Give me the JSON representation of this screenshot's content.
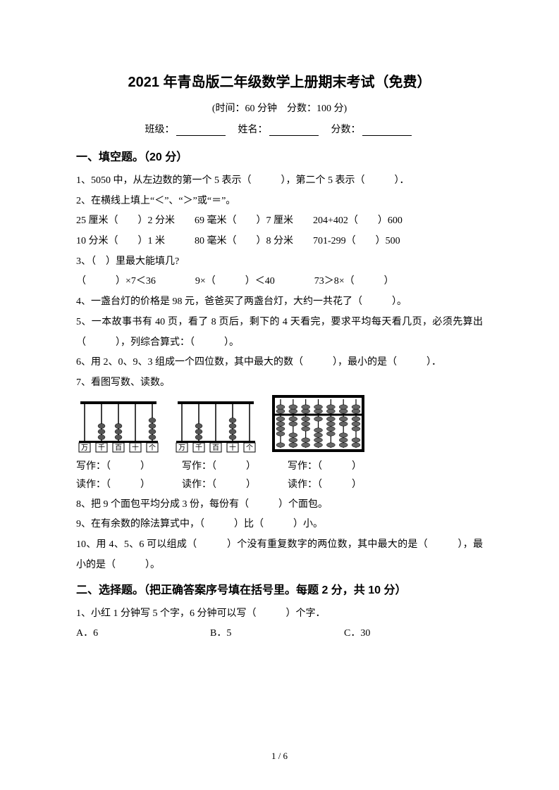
{
  "title": "2021 年青岛版二年级数学上册期末考试（免费）",
  "subtitle": "(时间：60 分钟　分数：100 分)",
  "info": {
    "class_label": "班级：",
    "name_label": "姓名：",
    "score_label": "分数："
  },
  "section1": {
    "head": "一、填空题。（20 分）",
    "q1": "1、5050 中，从左边数的第一个 5 表示（　　　），第二个 5 表示（　　　）．",
    "q2_intro": "2、在横线上填上“＜”、“＞”或“＝”。",
    "q2_l1": "25 厘米（　　）2 分米　　69 毫米（　　）7 厘米　　204+402（　　）600",
    "q2_l2": "10 分米（　　）1 米　　　80 毫米（　　）8 分米　　701-299（　　）500",
    "q3_intro": "3、（　）里最大能填几?",
    "q3_l1": "（　　　）×7＜36　　　　9×（　　　）＜40　　　　73＞8×（　　　）",
    "q4": "4、一盏台灯的价格是 98 元，爸爸买了两盏台灯，大约一共花了（　　　）。",
    "q5": "5、一本故事书有 40 页，看了 8 页后，剩下的 4 天看完，要求平均每天看几页，必须先算出（　　　），列综合算式：（　　　）。",
    "q6": "6、用 2、0、9、3 组成一个四位数，其中最大的数（　　　），最小的是（　　　）．",
    "q7_intro": "7、看图写数、读数。",
    "write_label": "写作：（　　　）",
    "read_label": "读作：（　　　）",
    "q8": "8、把 9 个面包平均分成 3 份，每份有（　　　）个面包。",
    "q9": "9、在有余数的除法算式中，（　　　）比（　　　）小。",
    "q10": "10、用 4、5、6 可以组成（　　　）个没有重复数字的两位数，其中最大的是（　　　），最小的是（　　　）。",
    "abacus_labels": [
      "万",
      "千",
      "百",
      "十",
      "个"
    ],
    "abacus1_beads": [
      0,
      3,
      3,
      0,
      4
    ],
    "abacus2_beads": [
      0,
      3,
      0,
      4,
      0
    ],
    "suanpan_top": [
      1,
      1,
      1,
      1,
      1,
      1,
      1
    ],
    "suanpan_bot": [
      4,
      2,
      3,
      1,
      4,
      2,
      3
    ]
  },
  "section2": {
    "head": "二、选择题。（把正确答案序号填在括号里。每题 2 分，共 10 分）",
    "q1": "1、小红 1 分钟写 5 个字，6 分钟可以写（　　　）个字．",
    "opts": {
      "a": "A．6",
      "b": "B．5",
      "c": "C．30"
    }
  },
  "pager": "1 / 6",
  "colors": {
    "text": "#000000",
    "bg": "#ffffff"
  }
}
